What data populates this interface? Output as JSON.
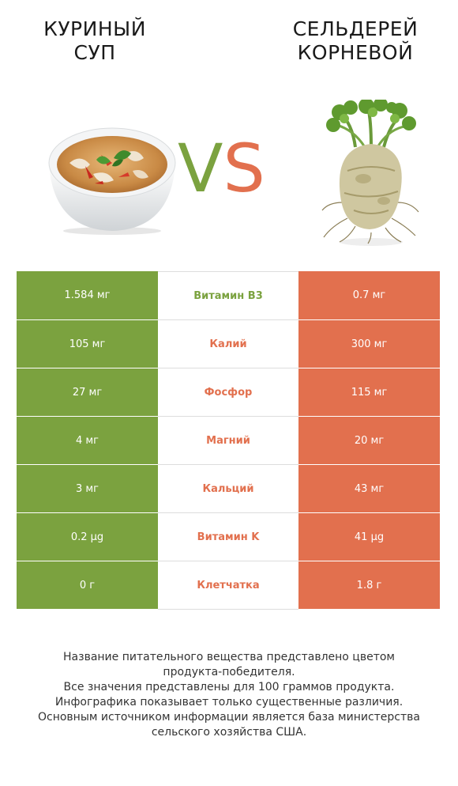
{
  "left_product": {
    "title_line1": "КУРИНЫЙ",
    "title_line2": "СУП",
    "image_icon": "soup-bowl-icon"
  },
  "right_product": {
    "title_line1": "СЕЛЬДЕРЕЙ",
    "title_line2": "КОРНЕВОЙ",
    "image_icon": "celery-root-icon"
  },
  "vs": {
    "v": "V",
    "s": "S"
  },
  "colors": {
    "left": "#7ba23f",
    "right": "#e2704e"
  },
  "rows": [
    {
      "left": "1.584 мг",
      "nutrient": "Витамин B3",
      "right": "0.7 мг",
      "winner": "left"
    },
    {
      "left": "105 мг",
      "nutrient": "Калий",
      "right": "300 мг",
      "winner": "right"
    },
    {
      "left": "27 мг",
      "nutrient": "Фосфор",
      "right": "115 мг",
      "winner": "right"
    },
    {
      "left": "4 мг",
      "nutrient": "Магний",
      "right": "20 мг",
      "winner": "right"
    },
    {
      "left": "3 мг",
      "nutrient": "Кальций",
      "right": "43 мг",
      "winner": "right"
    },
    {
      "left": "0.2 µg",
      "nutrient": "Витамин K",
      "right": "41 µg",
      "winner": "right"
    },
    {
      "left": "0 г",
      "nutrient": "Клетчатка",
      "right": "1.8 г",
      "winner": "right"
    }
  ],
  "footnote": [
    "Название питательного вещества представлено цветом",
    "продукта-победителя.",
    "Все значения представлены для 100 граммов продукта.",
    "Инфографика показывает только существенные различия.",
    "Основным источником информации является база министерства",
    "сельского хозяйства США."
  ]
}
